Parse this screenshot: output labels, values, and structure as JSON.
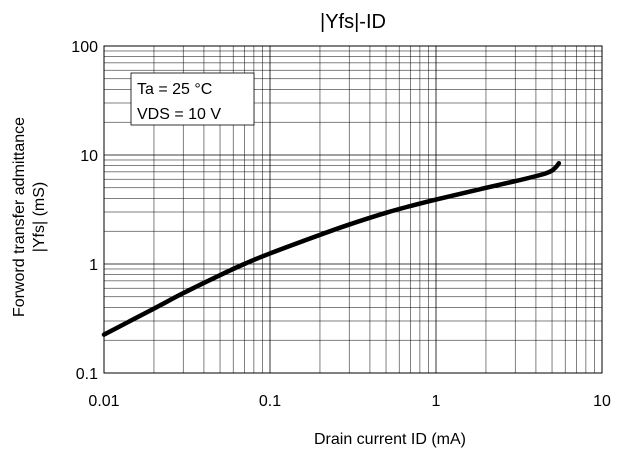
{
  "chart_data": {
    "type": "line",
    "title": "|Yfs|-ID",
    "xlabel": "Drain current ID (mA)",
    "ylabel_line1": "Forword transfer admittance",
    "ylabel_line2": "|Yfs| (mS)",
    "xscale": "log",
    "yscale": "log",
    "xlim": [
      0.01,
      10
    ],
    "ylim": [
      0.1,
      100
    ],
    "x_ticks": [
      0.01,
      0.1,
      1,
      10
    ],
    "x_tick_labels": [
      "0.01",
      "0.1",
      "1",
      "10"
    ],
    "y_ticks": [
      0.1,
      1,
      10,
      100
    ],
    "y_tick_labels": [
      "0.1",
      "1",
      "10",
      "100"
    ],
    "grid": true,
    "annotations": [
      "Ta = 25 °C",
      "VDS = 10 V"
    ],
    "series": [
      {
        "color": "#000000",
        "x": [
          0.01,
          0.02,
          0.03,
          0.05,
          0.07,
          0.1,
          0.2,
          0.3,
          0.5,
          0.7,
          1,
          2,
          3,
          4,
          4.6,
          5.0,
          5.3,
          5.5
        ],
        "y": [
          0.225,
          0.39,
          0.54,
          0.79,
          1.0,
          1.25,
          1.85,
          2.3,
          2.95,
          3.4,
          3.9,
          5.0,
          5.75,
          6.4,
          6.8,
          7.2,
          7.8,
          8.4
        ]
      }
    ]
  }
}
